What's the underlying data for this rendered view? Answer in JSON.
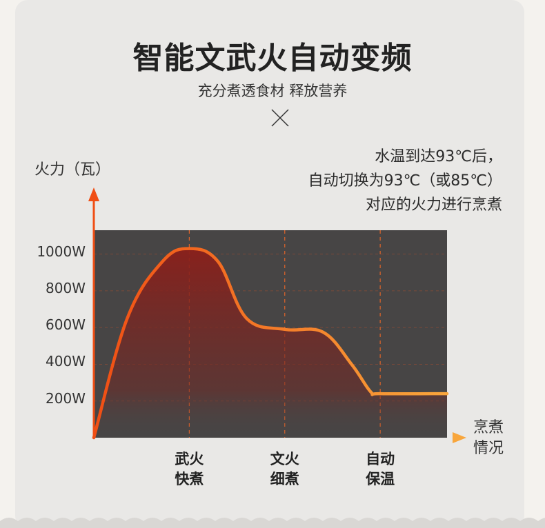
{
  "header": {
    "title": "智能文武火自动变频",
    "subtitle": "充分煮透食材 释放营养"
  },
  "note": [
    "水温到达93℃后，",
    "自动切换为93℃（或85℃）",
    "对应的火力进行烹煮"
  ],
  "colors": {
    "plot_bg": "#474545",
    "curve_start": "#f05a1a",
    "curve_end": "#f7a13a",
    "card": "#e9e8e6"
  },
  "chart_data": {
    "type": "area",
    "ylabel": "火力（瓦）",
    "xlabel_lines": [
      "烹煮",
      "情况"
    ],
    "y_ticks": [
      "1000W",
      "800W",
      "600W",
      "400W",
      "200W"
    ],
    "y_tick_values": [
      1000,
      800,
      600,
      400,
      200
    ],
    "ylim": [
      0,
      1130
    ],
    "phases": [
      {
        "lines": [
          "武火",
          "快煮"
        ],
        "x": 1
      },
      {
        "lines": [
          "文火",
          "细煮"
        ],
        "x": 2
      },
      {
        "lines": [
          "自动",
          "保温"
        ],
        "x": 3
      }
    ],
    "xlim": [
      0,
      3.7
    ],
    "curve": [
      {
        "x": 0.0,
        "y": 0
      },
      {
        "x": 0.35,
        "y": 650
      },
      {
        "x": 0.72,
        "y": 960
      },
      {
        "x": 1.0,
        "y": 1030
      },
      {
        "x": 1.3,
        "y": 960
      },
      {
        "x": 1.6,
        "y": 650
      },
      {
        "x": 2.0,
        "y": 590
      },
      {
        "x": 2.4,
        "y": 575
      },
      {
        "x": 2.7,
        "y": 400
      },
      {
        "x": 2.9,
        "y": 250
      },
      {
        "x": 3.0,
        "y": 240
      },
      {
        "x": 3.7,
        "y": 240
      }
    ],
    "grid": true
  }
}
